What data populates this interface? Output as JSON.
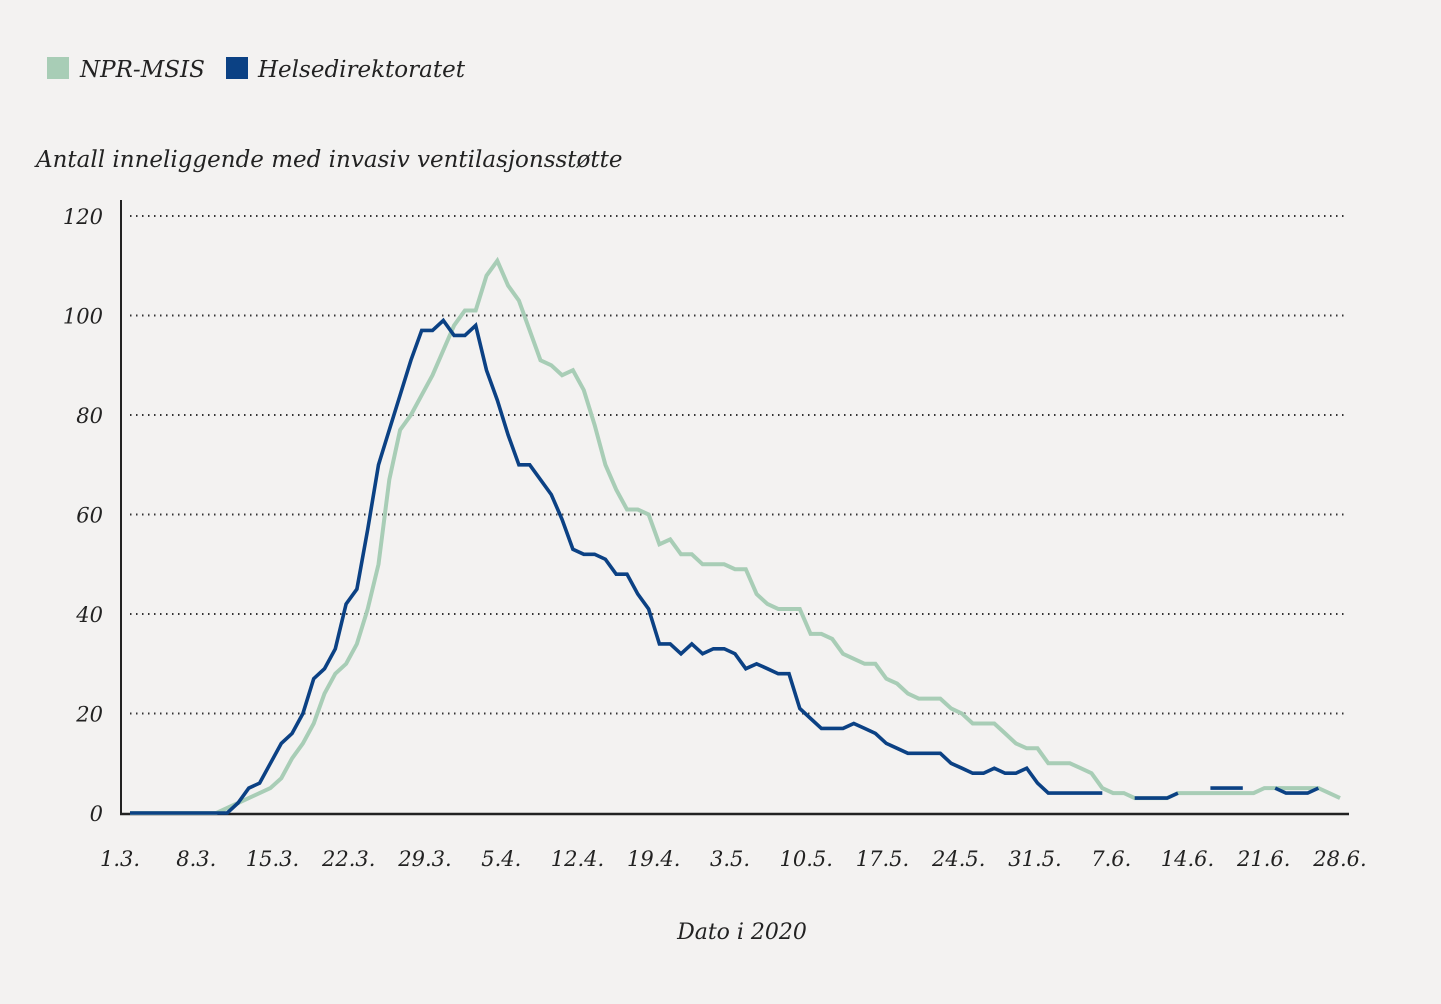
{
  "chart_data": {
    "type": "line",
    "ylabel": "Antall inneliggende med invasiv ventilasjonsstøtte",
    "xlabel": "Dato i 2020",
    "ylim": [
      0,
      120
    ],
    "yticks": [
      "0",
      "20",
      "40",
      "60",
      "80",
      "100",
      "120"
    ],
    "xticks": [
      "1.3.",
      "8.3.",
      "15.3.",
      "22.3.",
      "29.3.",
      "5.4.",
      "12.4.",
      "19.4.",
      "3.5.",
      "10.5.",
      "17.5.",
      "24.5.",
      "31.5.",
      "7.6.",
      "14.6.",
      "21.6.",
      "28.6."
    ],
    "grid": "horizontal dotted",
    "legend": "top-left",
    "series": [
      {
        "name": "NPR-MSIS",
        "color": "#a8cdb6",
        "values": [
          0,
          0,
          0,
          0,
          0,
          0,
          0,
          0,
          0,
          1,
          2,
          3,
          4,
          5,
          7,
          11,
          14,
          18,
          24,
          28,
          30,
          34,
          41,
          50,
          67,
          77,
          80,
          84,
          88,
          93,
          98,
          101,
          101,
          108,
          111,
          106,
          103,
          97,
          91,
          90,
          88,
          89,
          85,
          78,
          70,
          65,
          61,
          61,
          60,
          54,
          55,
          52,
          52,
          50,
          50,
          50,
          49,
          49,
          44,
          42,
          41,
          41,
          41,
          36,
          36,
          35,
          32,
          31,
          30,
          30,
          27,
          26,
          24,
          23,
          23,
          23,
          21,
          20,
          18,
          18,
          18,
          16,
          14,
          13,
          13,
          10,
          10,
          10,
          9,
          8,
          5,
          4,
          4,
          3,
          3,
          3,
          3,
          4,
          4,
          4,
          4,
          4,
          4,
          4,
          4,
          5,
          5,
          5,
          5,
          5,
          5,
          4,
          3
        ]
      },
      {
        "name": "Helsedirektoratet",
        "color": "#0b4184",
        "values": [
          0,
          0,
          0,
          0,
          0,
          0,
          0,
          0,
          0,
          0,
          2,
          5,
          6,
          10,
          14,
          16,
          20,
          27,
          29,
          33,
          42,
          45,
          57,
          70,
          77,
          84,
          91,
          97,
          97,
          99,
          96,
          96,
          98,
          89,
          83,
          76,
          70,
          70,
          67,
          64,
          59,
          53,
          52,
          52,
          51,
          48,
          48,
          44,
          41,
          34,
          34,
          32,
          34,
          32,
          33,
          33,
          32,
          29,
          30,
          29,
          28,
          28,
          21,
          19,
          17,
          17,
          17,
          18,
          17,
          16,
          14,
          13,
          12,
          12,
          12,
          12,
          10,
          9,
          8,
          8,
          9,
          8,
          8,
          9,
          6,
          4,
          4,
          4,
          4,
          4,
          4,
          null,
          null,
          3,
          3,
          3,
          3,
          4,
          null,
          null,
          5,
          5,
          5,
          5,
          null,
          null,
          5,
          4,
          4,
          4,
          5,
          null,
          null
        ]
      }
    ]
  }
}
